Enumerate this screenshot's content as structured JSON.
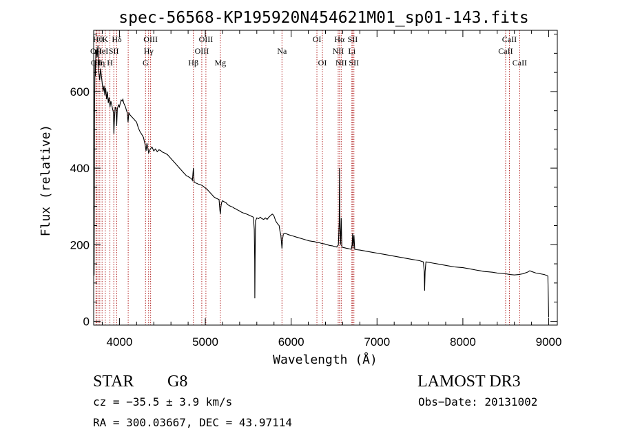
{
  "chart_data": {
    "type": "line",
    "title": "spec-56568-KP195920N454621M01_sp01-143.fits",
    "xlabel": "Wavelength (Å)",
    "ylabel": "Flux (relative)",
    "xlim": [
      3700,
      9100
    ],
    "ylim": [
      -10,
      760
    ],
    "xticks": [
      4000,
      5000,
      6000,
      7000,
      8000,
      9000
    ],
    "yticks": [
      0,
      200,
      400,
      600
    ],
    "grid": false,
    "series": [
      {
        "color": "#000000",
        "points": [
          [
            3700,
            300
          ],
          [
            3705,
            120
          ],
          [
            3710,
            520
          ],
          [
            3715,
            680
          ],
          [
            3720,
            640
          ],
          [
            3725,
            700
          ],
          [
            3730,
            710
          ],
          [
            3740,
            690
          ],
          [
            3750,
            720
          ],
          [
            3760,
            650
          ],
          [
            3770,
            630
          ],
          [
            3780,
            660
          ],
          [
            3790,
            640
          ],
          [
            3800,
            620
          ],
          [
            3810,
            600
          ],
          [
            3820,
            615
          ],
          [
            3830,
            590
          ],
          [
            3840,
            610
          ],
          [
            3850,
            580
          ],
          [
            3860,
            600
          ],
          [
            3870,
            570
          ],
          [
            3880,
            585
          ],
          [
            3890,
            560
          ],
          [
            3900,
            575
          ],
          [
            3910,
            565
          ],
          [
            3920,
            555
          ],
          [
            3930,
            545
          ],
          [
            3935,
            490
          ],
          [
            3940,
            520
          ],
          [
            3950,
            560
          ],
          [
            3960,
            555
          ],
          [
            3968,
            510
          ],
          [
            3975,
            555
          ],
          [
            3990,
            565
          ],
          [
            4000,
            560
          ],
          [
            4010,
            570
          ],
          [
            4020,
            578
          ],
          [
            4030,
            575
          ],
          [
            4040,
            580
          ],
          [
            4050,
            570
          ],
          [
            4060,
            565
          ],
          [
            4070,
            560
          ],
          [
            4080,
            552
          ],
          [
            4090,
            545
          ],
          [
            4100,
            520
          ],
          [
            4110,
            545
          ],
          [
            4120,
            540
          ],
          [
            4140,
            535
          ],
          [
            4160,
            530
          ],
          [
            4180,
            525
          ],
          [
            4200,
            520
          ],
          [
            4220,
            505
          ],
          [
            4240,
            495
          ],
          [
            4260,
            488
          ],
          [
            4280,
            480
          ],
          [
            4300,
            460
          ],
          [
            4310,
            445
          ],
          [
            4320,
            465
          ],
          [
            4340,
            440
          ],
          [
            4360,
            450
          ],
          [
            4380,
            455
          ],
          [
            4400,
            445
          ],
          [
            4420,
            450
          ],
          [
            4440,
            443
          ],
          [
            4460,
            448
          ],
          [
            4480,
            446
          ],
          [
            4500,
            442
          ],
          [
            4520,
            440
          ],
          [
            4540,
            438
          ],
          [
            4560,
            435
          ],
          [
            4580,
            430
          ],
          [
            4600,
            425
          ],
          [
            4620,
            420
          ],
          [
            4640,
            415
          ],
          [
            4660,
            410
          ],
          [
            4680,
            405
          ],
          [
            4700,
            400
          ],
          [
            4720,
            395
          ],
          [
            4740,
            390
          ],
          [
            4760,
            385
          ],
          [
            4780,
            380
          ],
          [
            4800,
            378
          ],
          [
            4820,
            375
          ],
          [
            4840,
            372
          ],
          [
            4850,
            368
          ],
          [
            4861,
            400
          ],
          [
            4870,
            365
          ],
          [
            4880,
            362
          ],
          [
            4900,
            360
          ],
          [
            4920,
            358
          ],
          [
            4940,
            357
          ],
          [
            4960,
            355
          ],
          [
            4980,
            352
          ],
          [
            5000,
            348
          ],
          [
            5020,
            345
          ],
          [
            5040,
            340
          ],
          [
            5060,
            335
          ],
          [
            5080,
            330
          ],
          [
            5100,
            325
          ],
          [
            5120,
            322
          ],
          [
            5140,
            320
          ],
          [
            5160,
            318
          ],
          [
            5170,
            290
          ],
          [
            5175,
            280
          ],
          [
            5183,
            300
          ],
          [
            5190,
            310
          ],
          [
            5200,
            315
          ],
          [
            5220,
            312
          ],
          [
            5240,
            310
          ],
          [
            5260,
            305
          ],
          [
            5280,
            302
          ],
          [
            5300,
            300
          ],
          [
            5320,
            298
          ],
          [
            5340,
            295
          ],
          [
            5360,
            293
          ],
          [
            5380,
            290
          ],
          [
            5400,
            288
          ],
          [
            5420,
            285
          ],
          [
            5440,
            283
          ],
          [
            5460,
            282
          ],
          [
            5480,
            280
          ],
          [
            5500,
            278
          ],
          [
            5520,
            276
          ],
          [
            5540,
            274
          ],
          [
            5560,
            272
          ],
          [
            5570,
            240
          ],
          [
            5575,
            160
          ],
          [
            5577,
            60
          ],
          [
            5580,
            160
          ],
          [
            5585,
            262
          ],
          [
            5600,
            270
          ],
          [
            5620,
            268
          ],
          [
            5640,
            272
          ],
          [
            5660,
            268
          ],
          [
            5680,
            266
          ],
          [
            5700,
            270
          ],
          [
            5720,
            266
          ],
          [
            5740,
            272
          ],
          [
            5760,
            276
          ],
          [
            5780,
            280
          ],
          [
            5790,
            278
          ],
          [
            5800,
            275
          ],
          [
            5820,
            262
          ],
          [
            5840,
            255
          ],
          [
            5860,
            250
          ],
          [
            5870,
            235
          ],
          [
            5880,
            225
          ],
          [
            5893,
            190
          ],
          [
            5900,
            215
          ],
          [
            5910,
            228
          ],
          [
            5930,
            230
          ],
          [
            5950,
            228
          ],
          [
            5970,
            226
          ],
          [
            6000,
            224
          ],
          [
            6030,
            222
          ],
          [
            6060,
            220
          ],
          [
            6090,
            218
          ],
          [
            6120,
            216
          ],
          [
            6150,
            214
          ],
          [
            6180,
            212
          ],
          [
            6210,
            210
          ],
          [
            6240,
            209
          ],
          [
            6270,
            208
          ],
          [
            6300,
            206
          ],
          [
            6330,
            205
          ],
          [
            6360,
            203
          ],
          [
            6390,
            202
          ],
          [
            6420,
            200
          ],
          [
            6450,
            198
          ],
          [
            6480,
            197
          ],
          [
            6510,
            195
          ],
          [
            6530,
            194
          ],
          [
            6550,
            200
          ],
          [
            6560,
            260
          ],
          [
            6563,
            400
          ],
          [
            6566,
            260
          ],
          [
            6575,
            200
          ],
          [
            6583,
            270
          ],
          [
            6590,
            195
          ],
          [
            6600,
            193
          ],
          [
            6620,
            192
          ],
          [
            6640,
            191
          ],
          [
            6660,
            190
          ],
          [
            6680,
            189
          ],
          [
            6700,
            188
          ],
          [
            6710,
            200
          ],
          [
            6716,
            230
          ],
          [
            6720,
            190
          ],
          [
            6731,
            225
          ],
          [
            6740,
            188
          ],
          [
            6760,
            187
          ],
          [
            6800,
            186
          ],
          [
            6850,
            184
          ],
          [
            6900,
            182
          ],
          [
            6950,
            180
          ],
          [
            7000,
            178
          ],
          [
            7050,
            176
          ],
          [
            7100,
            174
          ],
          [
            7150,
            172
          ],
          [
            7200,
            170
          ],
          [
            7250,
            168
          ],
          [
            7300,
            166
          ],
          [
            7350,
            164
          ],
          [
            7400,
            162
          ],
          [
            7450,
            160
          ],
          [
            7500,
            158
          ],
          [
            7540,
            155
          ],
          [
            7550,
            130
          ],
          [
            7555,
            80
          ],
          [
            7560,
            130
          ],
          [
            7570,
            155
          ],
          [
            7600,
            154
          ],
          [
            7650,
            152
          ],
          [
            7700,
            150
          ],
          [
            7750,
            148
          ],
          [
            7800,
            146
          ],
          [
            7850,
            144
          ],
          [
            7900,
            142
          ],
          [
            7950,
            141
          ],
          [
            8000,
            140
          ],
          [
            8050,
            138
          ],
          [
            8100,
            136
          ],
          [
            8150,
            134
          ],
          [
            8200,
            132
          ],
          [
            8250,
            130
          ],
          [
            8300,
            129
          ],
          [
            8350,
            128
          ],
          [
            8400,
            126
          ],
          [
            8450,
            125
          ],
          [
            8500,
            124
          ],
          [
            8550,
            122
          ],
          [
            8600,
            121
          ],
          [
            8650,
            122
          ],
          [
            8700,
            124
          ],
          [
            8750,
            128
          ],
          [
            8780,
            132
          ],
          [
            8800,
            130
          ],
          [
            8850,
            126
          ],
          [
            8900,
            124
          ],
          [
            8950,
            122
          ],
          [
            8990,
            118
          ],
          [
            9000,
            10
          ]
        ]
      }
    ],
    "line_markers": [
      {
        "wl": 3727,
        "label": "OII",
        "row": 1
      },
      {
        "wl": 3734,
        "label": "OII",
        "row": 2
      },
      {
        "wl": 3750,
        "label": "Hθ",
        "row": 0
      },
      {
        "wl": 3771,
        "label": "Hη",
        "row": 2
      },
      {
        "wl": 3798,
        "label": "HeI",
        "row": 1
      },
      {
        "wl": 3835,
        "label": "K",
        "row": 0
      },
      {
        "wl": 3889,
        "label": "H",
        "row": 2
      },
      {
        "wl": 3934,
        "label": "SII",
        "row": 1
      },
      {
        "wl": 3969,
        "label": "Hδ",
        "row": 0
      },
      {
        "wl": 4102,
        "label": "",
        "row": 0
      },
      {
        "wl": 4304,
        "label": "G",
        "row": 2
      },
      {
        "wl": 4340,
        "label": "Hγ",
        "row": 1
      },
      {
        "wl": 4363,
        "label": "OIII",
        "row": 0
      },
      {
        "wl": 4861,
        "label": "Hβ",
        "row": 2
      },
      {
        "wl": 4959,
        "label": "OIII",
        "row": 1
      },
      {
        "wl": 5007,
        "label": "OIII",
        "row": 0
      },
      {
        "wl": 5175,
        "label": "Mg",
        "row": 2
      },
      {
        "wl": 5893,
        "label": "Na",
        "row": 1
      },
      {
        "wl": 6300,
        "label": "OI",
        "row": 0
      },
      {
        "wl": 6364,
        "label": "OI",
        "row": 2
      },
      {
        "wl": 6548,
        "label": "NII",
        "row": 1
      },
      {
        "wl": 6563,
        "label": "Hα",
        "row": 0
      },
      {
        "wl": 6583,
        "label": "NII",
        "row": 2
      },
      {
        "wl": 6707,
        "label": "Li",
        "row": 1
      },
      {
        "wl": 6716,
        "label": "SII",
        "row": 0
      },
      {
        "wl": 6731,
        "label": "SII",
        "row": 2
      },
      {
        "wl": 8498,
        "label": "CaII",
        "row": 1
      },
      {
        "wl": 8542,
        "label": "CaII",
        "row": 0
      },
      {
        "wl": 8662,
        "label": "CaII",
        "row": 2
      }
    ]
  },
  "info": {
    "object_class": "STAR",
    "subclass": "G8",
    "survey": "LAMOST DR3",
    "cz": "cz = −35.5 ± 3.9 km/s",
    "obs_date": "Obs−Date: 20131002",
    "coords": "RA = 300.03667, DEC =  43.97114"
  },
  "colors": {
    "marker_line": "#b22222",
    "axis": "#000000",
    "spectrum": "#000000"
  }
}
